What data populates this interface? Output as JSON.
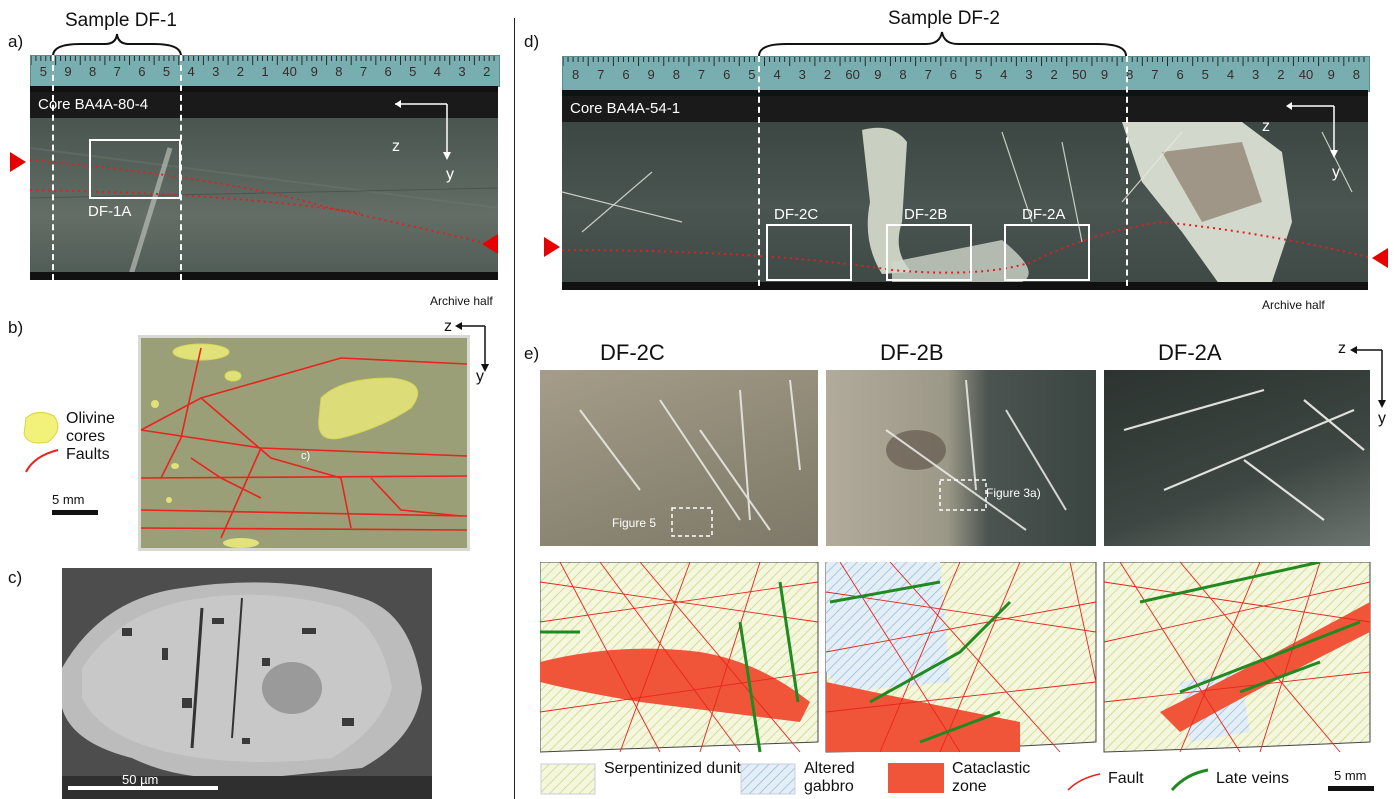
{
  "panels": {
    "a": {
      "letter": "a)",
      "sample_label": "Sample DF-1",
      "core_label": "Core BA4A-80-4",
      "box_label": "DF-1A",
      "archive": "Archive half",
      "axis_z": "z",
      "axis_y": "y",
      "ruler_numbers": [
        "5",
        "9",
        "8",
        "7",
        "6",
        "5",
        "4",
        "3",
        "2",
        "1",
        "40",
        "9",
        "8",
        "7",
        "6",
        "5",
        "4",
        "3",
        "2"
      ]
    },
    "b": {
      "letter": "b)",
      "axis_z": "z",
      "axis_y": "y",
      "legend_olivine": "Olivine cores",
      "legend_faults": "Faults",
      "scale": "5 mm",
      "callout": "c)"
    },
    "c": {
      "letter": "c)",
      "scale": "50 µm"
    },
    "d": {
      "letter": "d)",
      "sample_label": "Sample DF-2",
      "core_label": "Core BA4A-54-1",
      "box_labels": [
        "DF-2C",
        "DF-2B",
        "DF-2A"
      ],
      "archive": "Archive half",
      "axis_z": "z",
      "axis_y": "y",
      "ruler_numbers": [
        "8",
        "7",
        "6",
        "9",
        "8",
        "7",
        "6",
        "5",
        "4",
        "3",
        "2",
        "60",
        "9",
        "8",
        "7",
        "6",
        "5",
        "4",
        "3",
        "2",
        "50",
        "9",
        "8",
        "7",
        "6",
        "5",
        "4",
        "3",
        "2",
        "40",
        "9",
        "8"
      ]
    },
    "e": {
      "letter": "e)",
      "sub_titles": [
        "DF-2C",
        "DF-2B",
        "DF-2A"
      ],
      "axis_z": "z",
      "axis_y": "y",
      "fig5": "Figure 5",
      "fig3a": "Figure 3a)",
      "legend": {
        "serp": "Serpentinized dunite",
        "gabbro": "Altered gabbro",
        "cata": "Cataclastic zone",
        "fault": "Fault",
        "veins": "Late veins",
        "scale": "5 mm"
      }
    }
  },
  "colors": {
    "fault_red": "#e8241c",
    "marker_red": "#e60000",
    "vein_green": "#1f8a1f",
    "olivine_yellow": "#f2f27a",
    "serp_hatch": "#c9d77a",
    "gabbro_hatch": "#7fb3d9",
    "cataclastic": "#f0553a",
    "ruler": "#7fb3b0"
  }
}
